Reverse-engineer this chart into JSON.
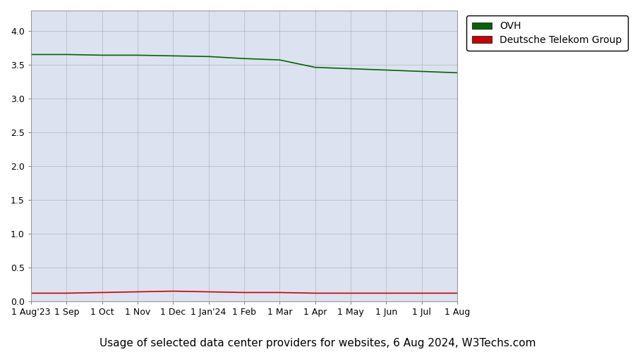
{
  "title": "Usage of selected data center providers for websites, 6 Aug 2024, W3Techs.com",
  "x_labels": [
    "1 Aug'23",
    "1 Sep",
    "1 Oct",
    "1 Nov",
    "1 Dec",
    "1 Jan'24",
    "1 Feb",
    "1 Mar",
    "1 Apr",
    "1 May",
    "1 Jun",
    "1 Jul",
    "1 Aug"
  ],
  "ovh_data": [
    3.65,
    3.65,
    3.64,
    3.64,
    3.63,
    3.62,
    3.59,
    3.57,
    3.46,
    3.44,
    3.42,
    3.4,
    3.38
  ],
  "telekom_data": [
    0.12,
    0.12,
    0.13,
    0.14,
    0.15,
    0.14,
    0.13,
    0.13,
    0.12,
    0.12,
    0.12,
    0.12,
    0.12
  ],
  "ovh_color": "#006600",
  "telekom_color": "#cc0000",
  "plot_bg_color": "#dde2f0",
  "fig_bg_color": "#ffffff",
  "grid_color": "#aaaaaa",
  "ylim": [
    0,
    4.3
  ],
  "yticks": [
    0,
    0.5,
    1.0,
    1.5,
    2.0,
    2.5,
    3.0,
    3.5,
    4.0
  ],
  "legend_labels": [
    "OVH",
    "Deutsche Telekom Group"
  ],
  "title_fontsize": 11
}
